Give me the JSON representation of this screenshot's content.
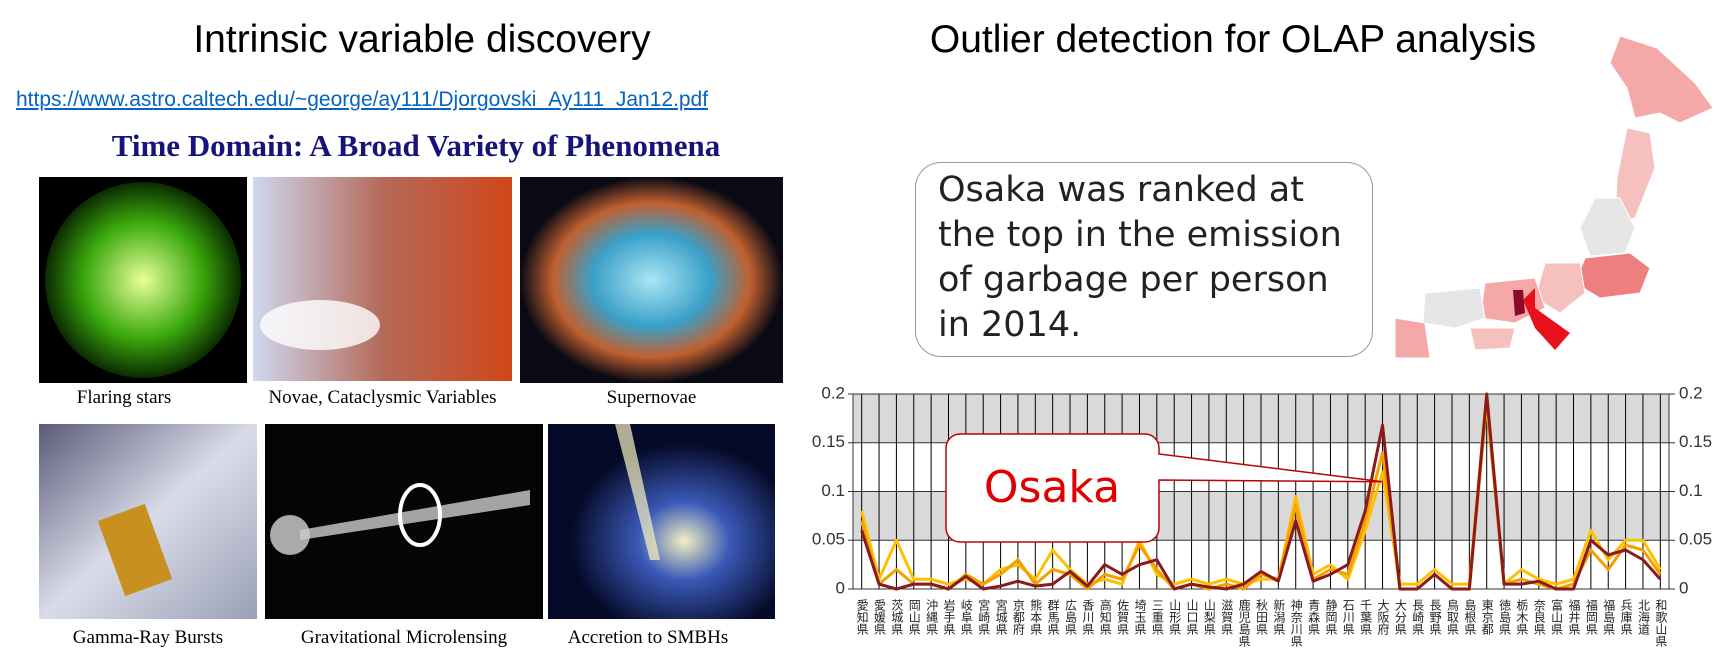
{
  "slide_left": {
    "title": "Intrinsic variable discovery",
    "link": "https://www.astro.caltech.edu/~george/ay111/Djorgovski_Ay111_Jan12.pdf",
    "heading": "Time Domain: A Broad Variety of Phenomena",
    "captions": [
      "Flaring stars",
      "Novae, Cataclysmic Variables",
      "Supernovae",
      "Gamma-Ray Bursts",
      "Gravitational Microlensing",
      "Accretion to SMBHs"
    ]
  },
  "chart_data": {
    "type": "line",
    "title": "Outlier detection for OLAP analysis",
    "annotations": [
      "Osaka was ranked at the top in the emission of garbage per person in 2014.",
      "Osaka"
    ],
    "categories": [
      "愛知県",
      "愛媛県",
      "茨城県",
      "岡山県",
      "沖縄県",
      "岩手県",
      "岐阜県",
      "宮崎県",
      "宮城県",
      "京都府",
      "熊本県",
      "群馬県",
      "広島県",
      "香川県",
      "高知県",
      "佐賀県",
      "埼玉県",
      "三重県",
      "山形県",
      "山口県",
      "山梨県",
      "滋賀県",
      "鹿児島県",
      "秋田県",
      "新潟県",
      "神奈川県",
      "青森県",
      "静岡県",
      "石川県",
      "千葉県",
      "大阪府",
      "大分県",
      "長崎県",
      "長野県",
      "鳥取県",
      "島根県",
      "東京都",
      "徳島県",
      "栃木県",
      "奈良県",
      "富山県",
      "福井県",
      "福岡県",
      "福島県",
      "兵庫県",
      "北海道",
      "和歌山県"
    ],
    "series": [
      {
        "color": "#ffc000",
        "values": [
          0.08,
          0.01,
          0.05,
          0.01,
          0.01,
          0.005,
          0.01,
          0.005,
          0.02,
          0.025,
          0.01,
          0.04,
          0.02,
          0.005,
          0.01,
          0.005,
          0.05,
          0.015,
          0.005,
          0.01,
          0.005,
          0.01,
          0.005,
          0.01,
          0.01,
          0.095,
          0.015,
          0.025,
          0.01,
          0.06,
          0.12,
          0.005,
          0.005,
          0.02,
          0.005,
          0.005,
          0.2,
          0.005,
          0.02,
          0.01,
          0.005,
          0.01,
          0.06,
          0.03,
          0.05,
          0.05,
          0.02
        ]
      },
      {
        "color": "#f4a000",
        "values": [
          0.07,
          0.005,
          0.02,
          0.005,
          0.005,
          0.0,
          0.015,
          0.005,
          0.015,
          0.03,
          0.005,
          0.02,
          0.015,
          0.0,
          0.015,
          0.01,
          0.045,
          0.02,
          0.0,
          0.005,
          0.0,
          0.005,
          0.0,
          0.015,
          0.01,
          0.085,
          0.01,
          0.02,
          0.015,
          0.07,
          0.14,
          0.0,
          0.0,
          0.015,
          0.0,
          0.0,
          0.19,
          0.005,
          0.01,
          0.005,
          0.0,
          0.005,
          0.04,
          0.02,
          0.045,
          0.04,
          0.015
        ]
      },
      {
        "color": "#8b1a1a",
        "values": [
          0.06,
          0.005,
          0.0,
          0.005,
          0.005,
          0.0,
          0.013,
          0.0,
          0.003,
          0.008,
          0.003,
          0.005,
          0.018,
          0.003,
          0.025,
          0.015,
          0.025,
          0.03,
          0.0,
          0.005,
          0.002,
          0.0,
          0.005,
          0.018,
          0.008,
          0.07,
          0.008,
          0.015,
          0.025,
          0.08,
          0.168,
          0.0,
          0.0,
          0.015,
          0.0,
          0.0,
          0.2,
          0.005,
          0.005,
          0.008,
          0.0,
          0.0,
          0.05,
          0.035,
          0.04,
          0.03,
          0.01
        ]
      }
    ],
    "ylim": [
      0,
      0.2
    ],
    "yticks": [
      0,
      0.05,
      0.1,
      0.15,
      0.2
    ],
    "y2lim": [
      0,
      0.2
    ],
    "y2ticks": [
      0,
      0.05,
      0.1,
      0.15,
      0.2
    ],
    "grid": true
  }
}
